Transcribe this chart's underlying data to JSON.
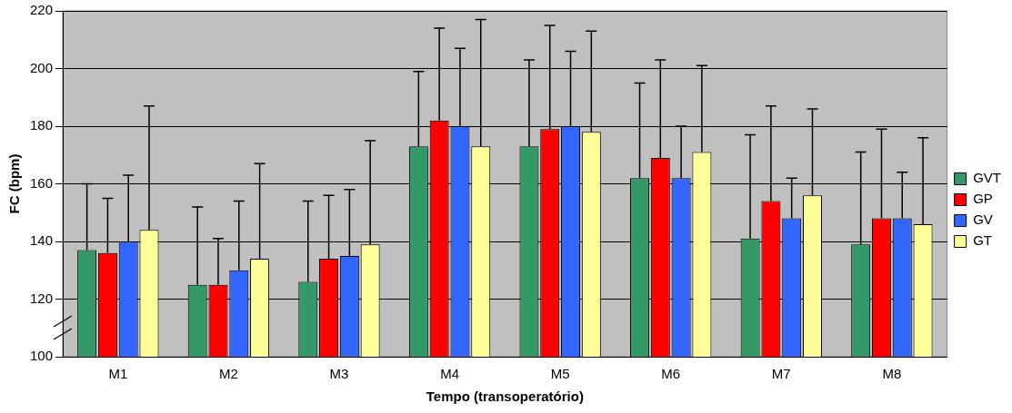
{
  "chart_data": {
    "type": "bar",
    "xlabel": "Tempo (transoperatório)",
    "ylabel": "FC (bpm)",
    "categories": [
      "M1",
      "M2",
      "M3",
      "M4",
      "M5",
      "M6",
      "M7",
      "M8"
    ],
    "series": [
      {
        "name": "GVT",
        "color": "#339966",
        "values": [
          137,
          125,
          126,
          173,
          173,
          162,
          141,
          139
        ],
        "errors": [
          [
            137,
            160
          ],
          [
            125,
            152
          ],
          [
            126,
            154
          ],
          [
            173,
            199
          ],
          [
            173,
            203
          ],
          [
            162,
            195
          ],
          [
            141,
            177
          ],
          [
            139,
            171
          ]
        ]
      },
      {
        "name": "GP",
        "color": "#ff0000",
        "values": [
          136,
          125,
          134,
          182,
          179,
          169,
          154,
          148
        ],
        "errors": [
          [
            136,
            155
          ],
          [
            125,
            141
          ],
          [
            134,
            156
          ],
          [
            182,
            214
          ],
          [
            179,
            215
          ],
          [
            169,
            203
          ],
          [
            154,
            187
          ],
          [
            148,
            179
          ]
        ]
      },
      {
        "name": "GV",
        "color": "#3366ff",
        "values": [
          140,
          130,
          135,
          180,
          180,
          162,
          148,
          148
        ],
        "errors": [
          [
            140,
            163
          ],
          [
            130,
            154
          ],
          [
            135,
            158
          ],
          [
            180,
            207
          ],
          [
            180,
            206
          ],
          [
            162,
            180
          ],
          [
            148,
            162
          ],
          [
            148,
            164
          ]
        ]
      },
      {
        "name": "GT",
        "color": "#ffff99",
        "values": [
          144,
          134,
          139,
          173,
          178,
          171,
          156,
          146
        ],
        "errors": [
          [
            144,
            187
          ],
          [
            134,
            167
          ],
          [
            139,
            175
          ],
          [
            173,
            217
          ],
          [
            178,
            213
          ],
          [
            171,
            201
          ],
          [
            156,
            186
          ],
          [
            146,
            176
          ]
        ]
      }
    ],
    "ylim": [
      100,
      220
    ],
    "yticks": [
      100,
      120,
      140,
      160,
      180,
      200,
      220
    ],
    "grid": "y",
    "legend": "right"
  }
}
